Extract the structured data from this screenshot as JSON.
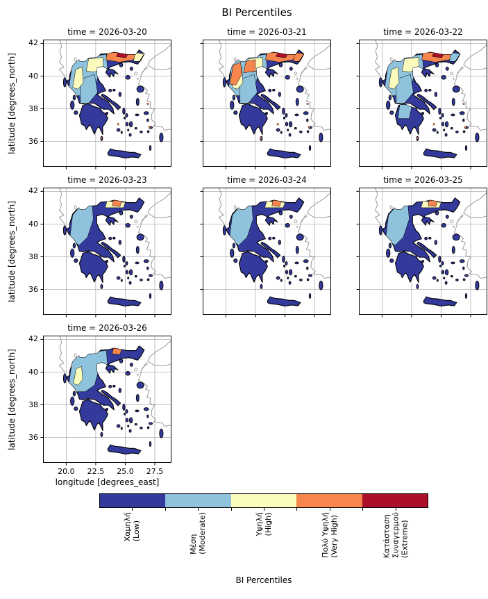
{
  "figure": {
    "title": "BI Percentiles"
  },
  "chart_data": {
    "type": "heatmap",
    "subtype": "categorical-choropleth-map-facets",
    "title": "BI Percentiles",
    "xlabel": "longitude [degrees_east]",
    "ylabel": "latitude [degrees_north]",
    "lon_tick_values": [
      20.0,
      22.5,
      25.0,
      27.5
    ],
    "lon_tick_labels": [
      "20.0",
      "22.5",
      "25.0",
      "27.5"
    ],
    "lat_tick_values": [
      42,
      40,
      38,
      36
    ],
    "lat_tick_labels": [
      "42",
      "40",
      "38",
      "36"
    ],
    "lon_range": [
      18.04,
      28.91
    ],
    "lat_range": [
      34.45,
      42.23
    ],
    "grid": true,
    "grid_color": "#b0b0b0",
    "coastline_color": "#000000",
    "neighbor_coast_color": "#999999",
    "panels": [
      {
        "date": "2026-03-20",
        "title": "time = 2026-03-20",
        "zones": [
          [
            "nw_wide",
            "moderate"
          ],
          [
            "central",
            "moderate"
          ],
          [
            "pindus",
            "high"
          ],
          [
            "macedonia",
            "high"
          ],
          [
            "thrace",
            "very_high"
          ],
          [
            "north_hotspot",
            "extreme"
          ],
          [
            "ne_corner",
            "high"
          ],
          [
            "island_spots",
            "very_high"
          ]
        ]
      },
      {
        "date": "2026-03-21",
        "title": "time = 2026-03-21",
        "zones": [
          [
            "nw_wide",
            "moderate"
          ],
          [
            "central",
            "moderate"
          ],
          [
            "pindus",
            "high"
          ],
          [
            "macedonia",
            "high"
          ],
          [
            "nw_west",
            "very_high"
          ],
          [
            "mac_mid",
            "very_high"
          ],
          [
            "thrace",
            "very_high"
          ],
          [
            "north_hotspot",
            "extreme"
          ],
          [
            "ne_corner",
            "very_high"
          ],
          [
            "island_spots",
            "very_high"
          ]
        ]
      },
      {
        "date": "2026-03-22",
        "title": "time = 2026-03-22",
        "zones": [
          [
            "nw_wide",
            "moderate"
          ],
          [
            "central",
            "moderate"
          ],
          [
            "pelop_mod",
            "moderate"
          ],
          [
            "pindus",
            "high"
          ],
          [
            "macedonia",
            "high"
          ],
          [
            "thrace",
            "very_high"
          ],
          [
            "north_hotspot",
            "extreme"
          ],
          [
            "ne_corner",
            "moderate"
          ],
          [
            "island_spots",
            "very_high"
          ]
        ]
      },
      {
        "date": "2026-03-23",
        "title": "time = 2026-03-23",
        "zones": [
          [
            "nw_narrow",
            "moderate"
          ],
          [
            "top_band_small",
            "high"
          ],
          [
            "top_spot",
            "very_high"
          ]
        ]
      },
      {
        "date": "2026-03-24",
        "title": "time = 2026-03-24",
        "zones": [
          [
            "nw_narrow",
            "moderate"
          ],
          [
            "top_band_small",
            "high"
          ],
          [
            "top_spot",
            "very_high"
          ]
        ]
      },
      {
        "date": "2026-03-25",
        "title": "time = 2026-03-25",
        "zones": [
          [
            "nw_narrow",
            "moderate"
          ],
          [
            "top_band_small",
            "high"
          ],
          [
            "top_spot",
            "very_high"
          ]
        ]
      },
      {
        "date": "2026-03-26",
        "title": "time = 2026-03-26",
        "zones": [
          [
            "nw_wide",
            "moderate"
          ],
          [
            "pindus_spots",
            "high"
          ],
          [
            "top_spot",
            "very_high"
          ]
        ]
      }
    ],
    "colorbar": {
      "label": "BI Percentiles",
      "categories": [
        {
          "key": "low",
          "lines": [
            "Χαμηλή",
            "(Low)"
          ],
          "color": "#333a9c"
        },
        {
          "key": "moderate",
          "lines": [
            "Μέση",
            "(Moderate)"
          ],
          "color": "#8fc3dd"
        },
        {
          "key": "high",
          "lines": [
            "Υψηλή",
            "(High)"
          ],
          "color": "#fbfbbd"
        },
        {
          "key": "very_high",
          "lines": [
            "Πολύ Υψηλή",
            "(Very High)"
          ],
          "color": "#f6864d"
        },
        {
          "key": "extreme",
          "lines": [
            "Κατάσταση",
            "Συναγερμού",
            "(Extreme)"
          ],
          "color": "#ab0f2a"
        }
      ]
    }
  }
}
